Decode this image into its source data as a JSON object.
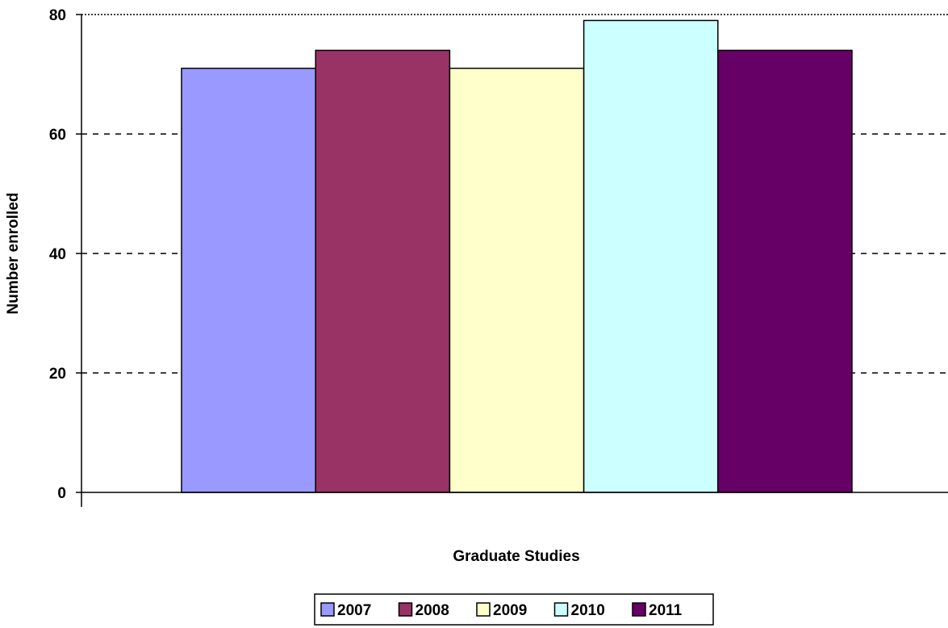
{
  "chart_data": {
    "type": "bar",
    "title": "",
    "xlabel": "Graduate Studies",
    "ylabel": "Number enrolled",
    "categories": [
      "Graduate Studies"
    ],
    "series": [
      {
        "name": "2007",
        "values": [
          71
        ],
        "color": "#9999ff"
      },
      {
        "name": "2008",
        "values": [
          74
        ],
        "color": "#993366"
      },
      {
        "name": "2009",
        "values": [
          71
        ],
        "color": "#ffffcc"
      },
      {
        "name": "2010",
        "values": [
          79
        ],
        "color": "#ccffff"
      },
      {
        "name": "2011",
        "values": [
          74
        ],
        "color": "#660066"
      }
    ],
    "ylim": [
      0,
      80
    ],
    "yticks": [
      0,
      20,
      40,
      60,
      80
    ],
    "grid": true,
    "legend_position": "bottom"
  }
}
